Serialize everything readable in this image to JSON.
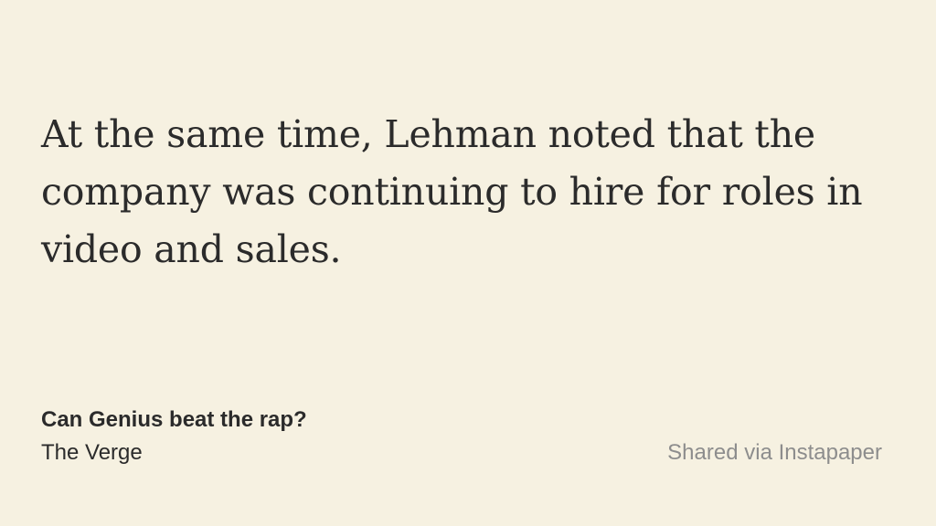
{
  "quote": {
    "line1": "At the same time, Lehman noted that the",
    "line2": "company was continuing to hire for roles in",
    "line3": "video and sales."
  },
  "article": {
    "title": "Can Genius beat the rap?",
    "source": "The Verge"
  },
  "footer": {
    "shared_text": "Shared via Instapaper"
  }
}
